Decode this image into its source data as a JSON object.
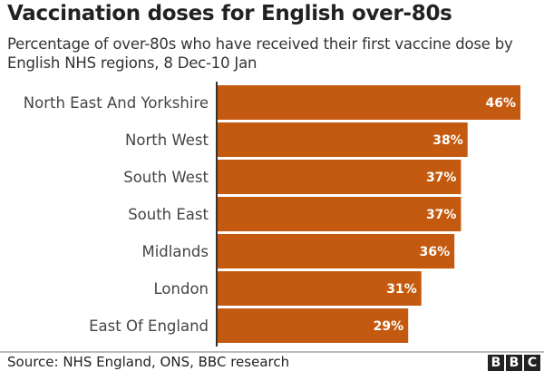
{
  "colors": {
    "bar": "#c45a0f",
    "label": "#444",
    "value": "#ffffff"
  },
  "chart_data": {
    "type": "bar",
    "orientation": "horizontal",
    "title": "Vaccination doses for English over-80s",
    "subtitle": "Percentage of over-80s who have received their first vaccine dose by English NHS regions, 8 Dec-10 Jan",
    "categories": [
      "North East And Yorkshire",
      "North West",
      "South West",
      "South East",
      "Midlands",
      "London",
      "East Of England"
    ],
    "values": [
      46,
      38,
      37,
      37,
      36,
      31,
      29
    ],
    "value_labels": [
      "46%",
      "38%",
      "37%",
      "37%",
      "36%",
      "31%",
      "29%"
    ],
    "xlim": [
      0,
      46
    ],
    "grid": false
  },
  "footer": {
    "source": "Source: NHS England, ONS, BBC research",
    "logo": "BBC"
  }
}
